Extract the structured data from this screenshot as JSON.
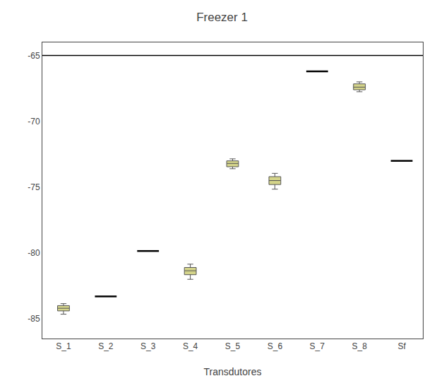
{
  "chart_data": {
    "type": "box",
    "title": "Freezer 1",
    "xlabel": "Transdutores",
    "categories": [
      "S_1",
      "S_2",
      "S_3",
      "S_4",
      "S_5",
      "S_6",
      "S_7",
      "S_8",
      "Sf"
    ],
    "ylim": [
      -86.5,
      -64.0
    ],
    "yticks": [
      -85,
      -80,
      -75,
      -70,
      -65
    ],
    "grid": false,
    "reference_line": -65.0,
    "series": [
      {
        "type": "box",
        "color": "#d4d48a",
        "q1": [
          -84.4,
          null,
          null,
          -81.65,
          -73.45,
          -74.8,
          null,
          -67.6,
          null
        ],
        "median": [
          -84.2,
          null,
          null,
          -81.35,
          -73.2,
          -74.5,
          null,
          -67.4,
          null
        ],
        "q3": [
          -84.0,
          null,
          null,
          -81.1,
          -73.0,
          -74.2,
          null,
          -67.15,
          null
        ],
        "whislo": [
          -84.65,
          null,
          null,
          -82.0,
          -73.6,
          -75.15,
          null,
          -67.75,
          null
        ],
        "whishi": [
          -83.85,
          null,
          null,
          -80.85,
          -72.85,
          -73.95,
          null,
          -67.0,
          null
        ]
      },
      {
        "type": "scatter",
        "marker": "line-ew",
        "color": "#000000",
        "values": [
          null,
          -83.3,
          -79.85,
          null,
          null,
          null,
          -66.2,
          null,
          -73.0
        ]
      }
    ]
  }
}
